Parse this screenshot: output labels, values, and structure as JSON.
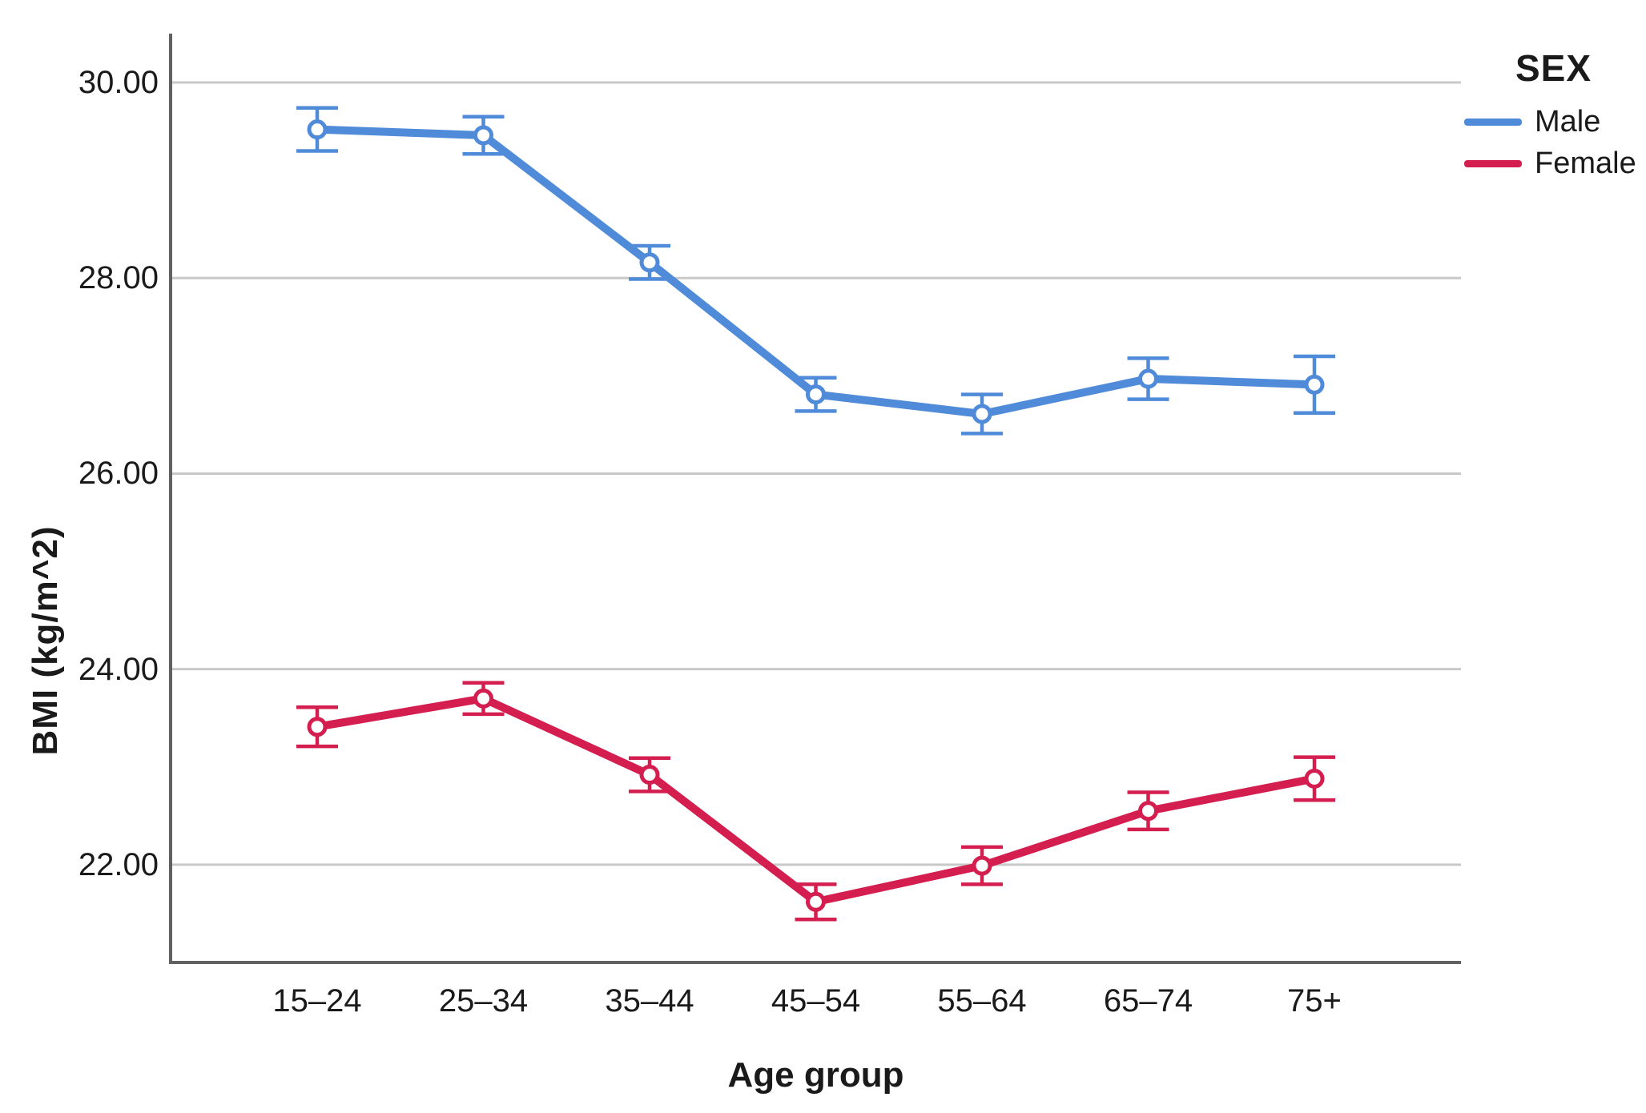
{
  "legend": {
    "title": "SEX"
  },
  "chart_data": {
    "type": "line",
    "title": "",
    "xlabel": "Age group",
    "ylabel": "BMI (kg/m^2)",
    "categories": [
      "15–24",
      "25–34",
      "35–44",
      "45–54",
      "55–64",
      "65–74",
      "75+"
    ],
    "series": [
      {
        "name": "Male",
        "color": "#4F8BD8",
        "marker": "open-circle",
        "values": [
          29.52,
          29.46,
          28.16,
          26.81,
          26.61,
          26.97,
          26.91
        ],
        "errors": [
          0.22,
          0.19,
          0.17,
          0.17,
          0.2,
          0.21,
          0.29
        ]
      },
      {
        "name": "Female",
        "color": "#D31E4F",
        "marker": "open-circle",
        "values": [
          23.41,
          23.7,
          22.92,
          21.62,
          21.99,
          22.55,
          22.88
        ],
        "errors": [
          0.2,
          0.16,
          0.17,
          0.18,
          0.19,
          0.19,
          0.22
        ]
      }
    ],
    "ylim": [
      21.0,
      30.5
    ],
    "ytick_values": [
      30,
      28,
      26,
      24,
      22
    ],
    "ytick_labels": [
      "30.00",
      "28.00",
      "26.00",
      "24.00",
      "22.00"
    ],
    "grid": "horizontal-only",
    "legend_position": "outside-top-right",
    "error_bars": true,
    "colors": {
      "grid": "#C9C9C9",
      "axis": "#616161",
      "text": "#1A1A1A",
      "background": "#FFFFFF"
    }
  }
}
